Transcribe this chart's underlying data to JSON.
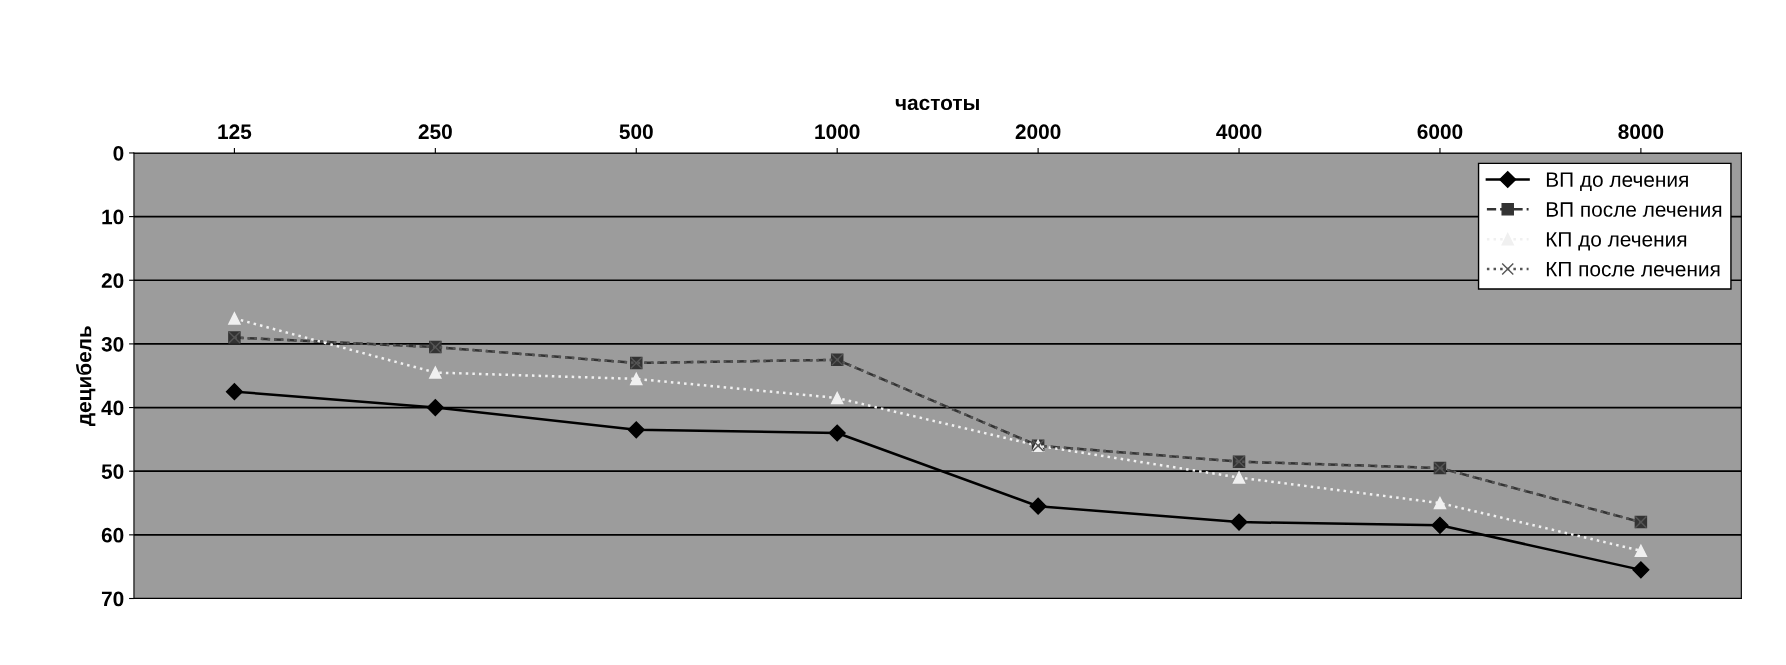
{
  "chart_data": {
    "type": "line",
    "xlabel": "частоты",
    "ylabel": "децибель",
    "categories": [
      "125",
      "250",
      "500",
      "1000",
      "2000",
      "4000",
      "6000",
      "8000"
    ],
    "series": [
      {
        "name": "ВП до лечения",
        "color": "#000000",
        "marker": "diamond",
        "line_style": "solid",
        "values": [
          37.5,
          40,
          43.5,
          44,
          55.5,
          58,
          58.5,
          65.5
        ]
      },
      {
        "name": "ВП после лечения",
        "color": "#333333",
        "marker": "square",
        "line_style": "dashed",
        "values": [
          29,
          30.5,
          33,
          32.5,
          46,
          48.5,
          49.5,
          58
        ]
      },
      {
        "name": "КП до лечения",
        "color": "#f0f0f0",
        "marker": "triangle",
        "line_style": "dotted",
        "values": [
          26,
          34.5,
          35.5,
          38.5,
          46,
          51,
          55,
          62.5
        ]
      },
      {
        "name": "КП после лечения",
        "color": "#555555",
        "marker": "cross",
        "line_style": "dotted",
        "values": [
          29,
          30.5,
          33,
          32.5,
          46,
          48.5,
          49.5,
          58
        ]
      }
    ],
    "ylim": [
      70,
      0
    ],
    "yticks": [
      0,
      10,
      20,
      30,
      40,
      50,
      60,
      70
    ],
    "grid": "y",
    "legend": "top right"
  }
}
